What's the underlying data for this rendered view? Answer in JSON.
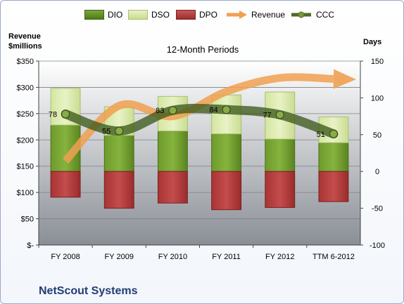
{
  "page": {
    "company": "NetScout Systems"
  },
  "legend": [
    {
      "label": "DIO",
      "kind": "swatch",
      "color": "#5c8a1d"
    },
    {
      "label": "DSO",
      "kind": "swatch",
      "color": "#d6e6a6"
    },
    {
      "label": "DPO",
      "kind": "swatch",
      "color": "#b53a3a"
    },
    {
      "label": "Revenue",
      "kind": "arrow",
      "color": "#f0a050"
    },
    {
      "label": "CCC",
      "kind": "line",
      "color": "#4f6b28"
    }
  ],
  "chart_data": {
    "type": "bar",
    "title": "12-Month Periods",
    "y_left_title": [
      "Revenue",
      "$millions"
    ],
    "y_right_title": "Days",
    "categories": [
      "FY 2008",
      "FY 2009",
      "FY 2010",
      "FY 2011",
      "FY 2012",
      "TTM 6-2012"
    ],
    "y_left_ticks": [
      "$-",
      "$50",
      "$100",
      "$150",
      "$200",
      "$250",
      "$300",
      "$350"
    ],
    "y_left_range": [
      0,
      350
    ],
    "y_right_ticks": [
      "-100",
      "-50",
      "0",
      "50",
      "100",
      "150"
    ],
    "y_right_range": [
      -100,
      150
    ],
    "days_series": [
      {
        "name": "DIO",
        "color": "#5c8a1d",
        "values": [
          63,
          49,
          55,
          51,
          44,
          39
        ]
      },
      {
        "name": "DSO",
        "color": "#d6e6a6",
        "values": [
          50,
          39,
          47,
          53,
          64,
          35
        ]
      },
      {
        "name": "DPO",
        "color": "#b53a3a",
        "values": [
          -35,
          -50,
          -43,
          -52,
          -49,
          -41
        ]
      }
    ],
    "revenue": {
      "name": "Revenue",
      "color": "#f0a050",
      "values": [
        160,
        265,
        245,
        292,
        318,
        316
      ]
    },
    "ccc": {
      "name": "CCC",
      "color": "#4f6b28",
      "values": [
        78,
        55,
        83,
        84,
        77,
        51
      ]
    },
    "ccc_labels": [
      "78",
      "55",
      "83",
      "84",
      "77",
      "51"
    ],
    "grid": true
  }
}
